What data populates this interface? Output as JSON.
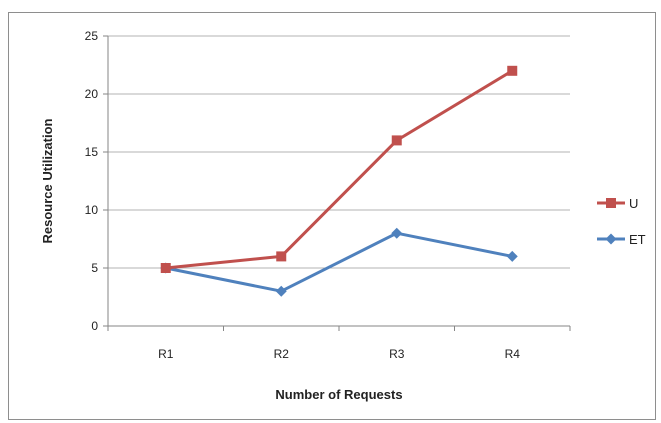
{
  "chart_data": {
    "type": "line",
    "categories": [
      "R1",
      "R2",
      "R3",
      "R4"
    ],
    "series": [
      {
        "name": "U",
        "values": [
          5,
          6,
          16,
          22
        ],
        "color": "#c0504d",
        "marker": "square"
      },
      {
        "name": "ET",
        "values": [
          5,
          3,
          8,
          6
        ],
        "color": "#4f81bd",
        "marker": "diamond"
      }
    ],
    "xlabel": "Number of Requests",
    "ylabel": "Resource Utilization",
    "ylim": [
      0,
      25
    ],
    "yticks": [
      "0",
      "5",
      "10",
      "15",
      "20",
      "25"
    ],
    "grid": true,
    "legend": "right"
  }
}
